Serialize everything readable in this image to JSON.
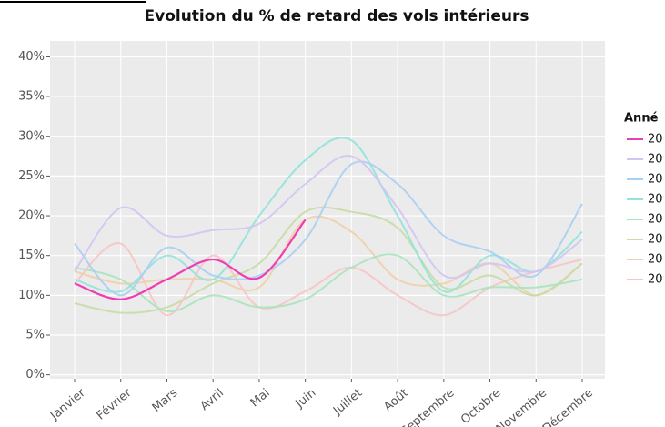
{
  "chart_data": {
    "type": "line",
    "title": "Evolution du % de retard des vols intérieurs",
    "categories": [
      "Janvier",
      "Février",
      "Mars",
      "Avril",
      "Mai",
      "Juin",
      "Juillet",
      "Août",
      "Septembre",
      "Octobre",
      "Novembre",
      "Décembre"
    ],
    "ylim": [
      -0.5,
      42
    ],
    "yticks": [
      {
        "value": 0,
        "label": "0%"
      },
      {
        "value": 5,
        "label": "5%"
      },
      {
        "value": 10,
        "label": "10%"
      },
      {
        "value": 15,
        "label": "15%"
      },
      {
        "value": 20,
        "label": "20%"
      },
      {
        "value": 25,
        "label": "25%"
      },
      {
        "value": 30,
        "label": "30%"
      },
      {
        "value": 35,
        "label": "35%"
      },
      {
        "value": 40,
        "label": "40%"
      }
    ],
    "grid": true,
    "legend_title": "Anné",
    "legend_position": "right",
    "series": [
      {
        "name": "20",
        "color": "#f03cb4",
        "values": [
          11.5,
          9.5,
          12,
          14.5,
          12.2,
          19.5,
          null,
          null,
          null,
          null,
          null,
          null
        ]
      },
      {
        "name": "20",
        "color": "#d4c4f4",
        "values": [
          13,
          21,
          17.5,
          18.2,
          19,
          24,
          27.5,
          21,
          12.5,
          14,
          13,
          17
        ]
      },
      {
        "name": "20",
        "color": "#a8cff4",
        "values": [
          16.5,
          10,
          16,
          12.5,
          12.5,
          17,
          26.5,
          24,
          17.5,
          15.5,
          12.5,
          21.5
        ]
      },
      {
        "name": "20",
        "color": "#90e4dc",
        "values": [
          12,
          10.5,
          15,
          12,
          20,
          27,
          29.5,
          20,
          10.5,
          15,
          13,
          18
        ]
      },
      {
        "name": "20",
        "color": "#a8e4bc",
        "values": [
          13.5,
          12,
          8,
          10,
          8.5,
          9.5,
          13.5,
          15,
          10,
          11,
          11,
          12
        ]
      },
      {
        "name": "20",
        "color": "#c8dca4",
        "values": [
          9,
          7.8,
          8.5,
          11.5,
          14,
          20.5,
          20.5,
          18.5,
          11,
          12.5,
          10,
          14
        ]
      },
      {
        "name": "20",
        "color": "#f0d0a8",
        "values": [
          13,
          11.5,
          12,
          12,
          11,
          19.5,
          18,
          12,
          11.5,
          14,
          10,
          14
        ]
      },
      {
        "name": "20",
        "color": "#f8c4c4",
        "values": [
          11.5,
          16.5,
          7.5,
          15,
          8.5,
          10.5,
          13.5,
          10,
          7.5,
          11,
          13,
          14.5
        ]
      }
    ]
  }
}
